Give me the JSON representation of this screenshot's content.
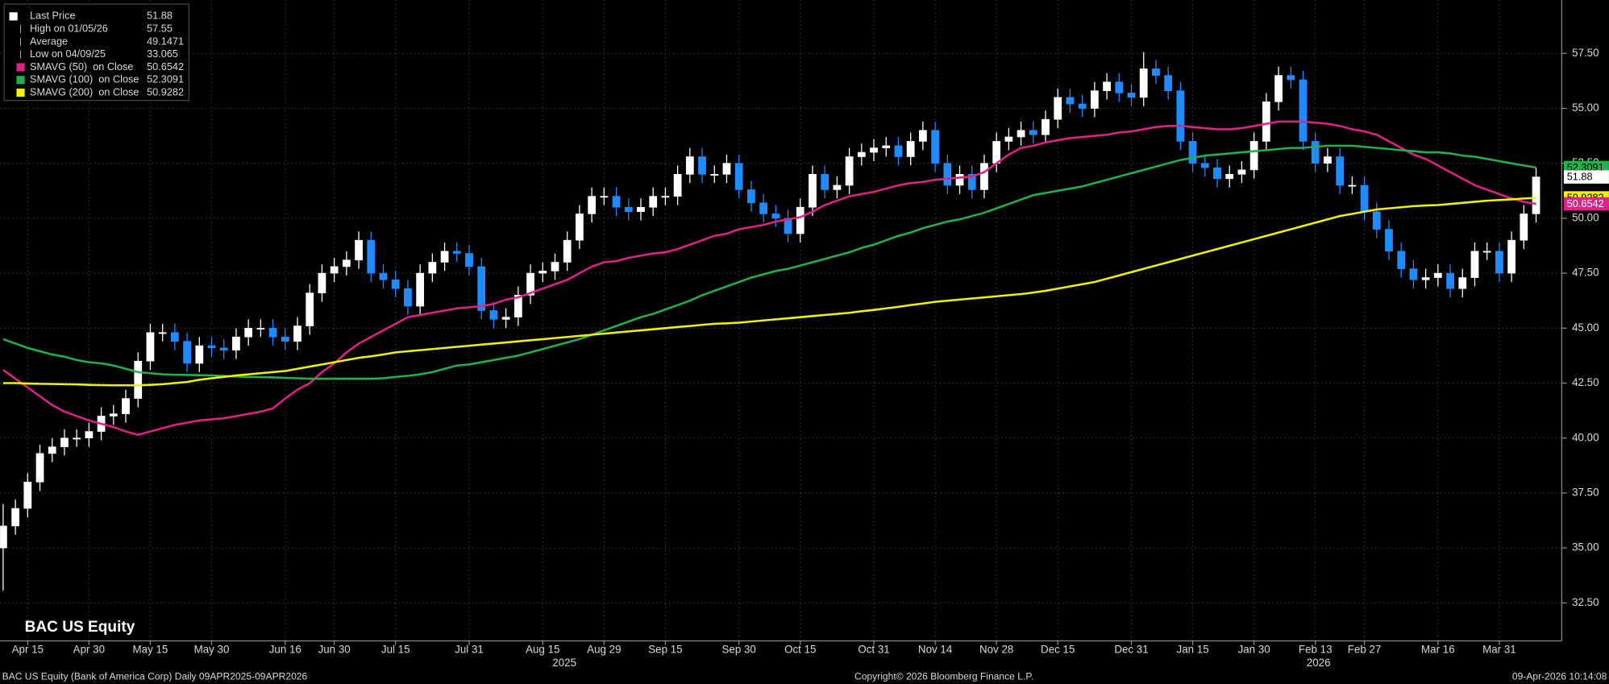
{
  "chart_data": {
    "type": "candlestick",
    "title": "BAC US Equity",
    "footer_left": "BAC US Equity (Bank of America Corp) Daily 09APR2025-09APR2026",
    "footer_center": "Copyright© 2026 Bloomberg Finance L.P.",
    "footer_right": "09-Apr-2026 10:14:08",
    "x_groups": [
      "2025",
      "2026"
    ],
    "categories": [
      null,
      null,
      "Apr 15",
      null,
      null,
      null,
      null,
      "Apr 30",
      null,
      null,
      null,
      null,
      "May 15",
      null,
      null,
      null,
      null,
      "May 30",
      null,
      null,
      null,
      null,
      null,
      "Jun 16",
      null,
      null,
      null,
      "Jun 30",
      null,
      null,
      null,
      null,
      "Jul 15",
      null,
      null,
      null,
      null,
      null,
      "Jul 31",
      null,
      null,
      null,
      null,
      null,
      "Aug 15",
      null,
      null,
      null,
      null,
      "Aug 29",
      null,
      null,
      null,
      null,
      "Sep 15",
      null,
      null,
      null,
      null,
      null,
      "Sep 30",
      null,
      null,
      null,
      null,
      "Oct 15",
      null,
      null,
      null,
      null,
      null,
      "Oct 31",
      null,
      null,
      null,
      null,
      "Nov 14",
      null,
      null,
      null,
      null,
      "Nov 28",
      null,
      null,
      null,
      null,
      "Dec 15",
      null,
      null,
      null,
      null,
      null,
      "Dec 31",
      null,
      null,
      null,
      null,
      "Jan 15",
      null,
      null,
      null,
      null,
      "Jan 30",
      null,
      null,
      null,
      null,
      "Feb 13",
      null,
      null,
      null,
      "Feb 27",
      null,
      null,
      null,
      null,
      null,
      "Mar 16",
      null,
      null,
      null,
      null,
      "Mar 31",
      null,
      null,
      null
    ],
    "price_name": "Last Price",
    "up_color": "#ffffff",
    "down_color": "#1f8bff",
    "open": [
      35.0,
      36.0,
      36.8,
      38.0,
      39.3,
      39.6,
      40.0,
      40.0,
      40.3,
      41.0,
      41.1,
      41.8,
      43.5,
      44.8,
      44.8,
      44.4,
      43.4,
      44.2,
      44.1,
      44.0,
      44.6,
      45.0,
      45.0,
      44.6,
      44.4,
      45.1,
      46.6,
      47.5,
      47.8,
      48.1,
      49.0,
      47.5,
      47.2,
      46.8,
      46.0,
      47.5,
      48.0,
      48.5,
      48.4,
      47.8,
      45.8,
      45.4,
      45.5,
      46.5,
      47.5,
      47.6,
      48.0,
      49.0,
      50.2,
      51.0,
      51.0,
      50.5,
      50.3,
      50.5,
      51.0,
      51.0,
      52.0,
      52.8,
      52.0,
      52.0,
      52.5,
      51.3,
      50.7,
      50.2,
      50.0,
      49.3,
      50.5,
      52.0,
      51.3,
      51.5,
      52.8,
      53.0,
      53.2,
      53.3,
      52.8,
      53.5,
      54.0,
      52.5,
      51.5,
      52.0,
      51.3,
      52.5,
      53.5,
      53.7,
      54.0,
      53.8,
      54.5,
      55.5,
      55.2,
      55.0,
      55.8,
      56.2,
      55.7,
      55.5,
      56.8,
      56.5,
      55.8,
      53.5,
      52.5,
      52.3,
      51.8,
      52.0,
      52.2,
      53.5,
      55.3,
      56.5,
      56.3,
      53.5,
      52.5,
      52.8,
      51.5,
      51.5,
      50.3,
      49.5,
      48.5,
      47.7,
      47.2,
      47.3,
      47.5,
      46.8,
      47.3,
      48.5,
      48.5,
      47.5,
      49.0,
      50.2
    ],
    "high": [
      37.0,
      37.2,
      38.4,
      39.7,
      40.0,
      40.4,
      40.4,
      40.7,
      41.4,
      41.5,
      42.2,
      43.9,
      45.2,
      45.2,
      45.2,
      44.8,
      44.6,
      44.6,
      44.5,
      45.0,
      45.4,
      45.4,
      45.4,
      45.0,
      45.5,
      47.0,
      47.9,
      48.2,
      48.5,
      49.4,
      49.4,
      47.9,
      47.6,
      47.2,
      47.9,
      48.4,
      48.9,
      48.9,
      48.8,
      48.2,
      46.2,
      45.9,
      46.9,
      47.9,
      48.0,
      48.4,
      49.4,
      50.6,
      51.4,
      51.4,
      51.4,
      50.9,
      50.9,
      51.4,
      51.4,
      52.4,
      53.2,
      53.2,
      52.4,
      52.9,
      52.9,
      51.7,
      51.1,
      50.6,
      50.4,
      50.9,
      52.4,
      52.4,
      51.9,
      53.2,
      53.4,
      53.6,
      53.7,
      53.7,
      53.9,
      54.4,
      54.4,
      52.9,
      52.4,
      52.4,
      52.9,
      53.9,
      54.1,
      54.4,
      54.4,
      54.9,
      55.9,
      55.9,
      55.6,
      56.2,
      56.6,
      56.6,
      56.1,
      57.55,
      57.2,
      56.9,
      56.2,
      53.9,
      52.9,
      52.7,
      52.4,
      52.6,
      53.9,
      55.7,
      56.9,
      56.9,
      56.7,
      53.9,
      53.2,
      53.2,
      51.9,
      51.9,
      50.7,
      49.9,
      48.9,
      48.1,
      47.7,
      47.9,
      47.9,
      47.7,
      48.9,
      48.9,
      48.9,
      49.4,
      50.6,
      52.3
    ],
    "low": [
      33.065,
      35.6,
      36.4,
      37.6,
      38.9,
      39.2,
      39.6,
      39.6,
      39.9,
      40.6,
      40.7,
      41.4,
      43.1,
      44.4,
      44.0,
      43.0,
      43.0,
      43.7,
      43.6,
      43.6,
      44.2,
      44.6,
      44.2,
      44.0,
      44.0,
      44.7,
      46.2,
      47.1,
      47.4,
      47.7,
      47.1,
      46.8,
      46.4,
      45.6,
      45.6,
      47.1,
      47.6,
      48.0,
      47.4,
      45.4,
      45.0,
      45.0,
      45.1,
      46.1,
      47.1,
      47.2,
      47.6,
      48.6,
      49.8,
      50.6,
      50.1,
      49.9,
      49.9,
      50.1,
      50.6,
      50.6,
      51.6,
      51.6,
      51.6,
      51.6,
      50.9,
      50.3,
      49.8,
      49.6,
      48.9,
      48.9,
      50.1,
      50.9,
      50.9,
      51.1,
      52.4,
      52.6,
      52.8,
      52.4,
      52.4,
      53.1,
      52.1,
      51.1,
      51.1,
      50.9,
      50.9,
      52.1,
      53.1,
      53.3,
      53.4,
      53.4,
      54.1,
      54.8,
      54.6,
      54.6,
      55.4,
      55.3,
      55.1,
      55.1,
      56.1,
      55.4,
      53.1,
      52.1,
      51.9,
      51.4,
      51.4,
      51.6,
      51.8,
      53.1,
      54.9,
      55.9,
      53.1,
      52.1,
      52.1,
      51.1,
      51.1,
      49.9,
      49.1,
      48.1,
      47.3,
      46.8,
      46.8,
      46.9,
      46.4,
      46.4,
      46.9,
      48.1,
      47.1,
      47.1,
      48.6,
      49.8
    ],
    "close": [
      36.0,
      36.8,
      38.0,
      39.3,
      39.6,
      40.0,
      40.0,
      40.3,
      41.0,
      41.1,
      41.8,
      43.5,
      44.8,
      44.8,
      44.4,
      43.4,
      44.2,
      44.1,
      44.0,
      44.6,
      45.0,
      45.0,
      44.6,
      44.4,
      45.1,
      46.6,
      47.5,
      47.8,
      48.1,
      49.0,
      47.5,
      47.2,
      46.8,
      46.0,
      47.5,
      48.0,
      48.5,
      48.4,
      47.8,
      45.8,
      45.4,
      45.5,
      46.5,
      47.5,
      47.6,
      48.0,
      49.0,
      50.2,
      51.0,
      51.0,
      50.5,
      50.3,
      50.5,
      51.0,
      51.0,
      52.0,
      52.8,
      52.0,
      52.0,
      52.5,
      51.3,
      50.7,
      50.2,
      50.0,
      49.3,
      50.5,
      52.0,
      51.3,
      51.5,
      52.8,
      53.0,
      53.2,
      53.3,
      52.8,
      53.5,
      54.0,
      52.5,
      51.5,
      52.0,
      51.3,
      52.5,
      53.5,
      53.7,
      54.0,
      53.8,
      54.5,
      55.5,
      55.2,
      55.0,
      55.8,
      56.2,
      55.7,
      55.5,
      56.8,
      56.5,
      55.8,
      53.5,
      52.5,
      52.3,
      51.8,
      52.0,
      52.2,
      53.5,
      55.3,
      56.5,
      56.3,
      53.5,
      52.5,
      52.8,
      51.5,
      51.5,
      50.3,
      49.5,
      48.5,
      47.7,
      47.2,
      47.3,
      47.5,
      46.8,
      47.3,
      48.5,
      48.5,
      47.5,
      49.0,
      50.2,
      51.88
    ],
    "stats": [
      {
        "name": "High on 01/05/26",
        "value": 57.55
      },
      {
        "name": "Average",
        "value": 49.1471
      },
      {
        "name": "Low on 04/09/25",
        "value": 33.065
      }
    ],
    "series": [
      {
        "name": "SMAVG (50)  on Close",
        "color": "#e0218a",
        "values": [
          43.1,
          42.7,
          42.3,
          41.9,
          41.5,
          41.2,
          41.0,
          40.8,
          40.65,
          40.5,
          40.3,
          40.15,
          40.3,
          40.45,
          40.6,
          40.7,
          40.8,
          40.85,
          40.9,
          41.0,
          41.1,
          41.2,
          41.35,
          41.8,
          42.2,
          42.5,
          43.0,
          43.4,
          43.9,
          44.3,
          44.6,
          44.9,
          45.2,
          45.5,
          45.6,
          45.7,
          45.8,
          45.9,
          45.95,
          46.0,
          46.1,
          46.3,
          46.4,
          46.6,
          46.8,
          47.0,
          47.2,
          47.5,
          47.8,
          48.0,
          48.05,
          48.2,
          48.3,
          48.4,
          48.45,
          48.6,
          48.8,
          49.0,
          49.2,
          49.3,
          49.5,
          49.6,
          49.7,
          49.85,
          49.95,
          50.05,
          50.3,
          50.6,
          50.8,
          51.0,
          51.1,
          51.2,
          51.35,
          51.5,
          51.6,
          51.65,
          51.75,
          51.8,
          51.85,
          51.9,
          52.1,
          52.5,
          52.9,
          53.2,
          53.3,
          53.45,
          53.55,
          53.65,
          53.7,
          53.75,
          53.8,
          53.9,
          53.95,
          54.05,
          54.15,
          54.2,
          54.2,
          54.15,
          54.1,
          54.05,
          54.05,
          54.1,
          54.2,
          54.3,
          54.4,
          54.4,
          54.4,
          54.35,
          54.3,
          54.2,
          54.05,
          53.95,
          53.8,
          53.5,
          53.2,
          52.9,
          52.7,
          52.4,
          52.1,
          51.8,
          51.5,
          51.3,
          51.1,
          50.9,
          50.75,
          50.6542
        ]
      },
      {
        "name": "SMAVG (100)  on Close",
        "color": "#22b14c",
        "values": [
          44.5,
          44.3,
          44.1,
          43.95,
          43.8,
          43.7,
          43.55,
          43.45,
          43.4,
          43.3,
          43.15,
          43.0,
          42.95,
          42.9,
          42.88,
          42.87,
          42.86,
          42.85,
          42.83,
          42.8,
          42.78,
          42.77,
          42.76,
          42.74,
          42.72,
          42.7,
          42.7,
          42.7,
          42.7,
          42.7,
          42.7,
          42.72,
          42.78,
          42.83,
          42.9,
          43.0,
          43.15,
          43.3,
          43.35,
          43.45,
          43.55,
          43.65,
          43.75,
          43.9,
          44.05,
          44.2,
          44.35,
          44.5,
          44.7,
          44.9,
          45.1,
          45.3,
          45.5,
          45.65,
          45.85,
          46.05,
          46.25,
          46.5,
          46.7,
          46.9,
          47.1,
          47.3,
          47.45,
          47.6,
          47.7,
          47.85,
          48.0,
          48.15,
          48.3,
          48.45,
          48.65,
          48.8,
          49.0,
          49.2,
          49.35,
          49.55,
          49.7,
          49.85,
          49.95,
          50.1,
          50.25,
          50.45,
          50.65,
          50.85,
          51.05,
          51.15,
          51.25,
          51.35,
          51.45,
          51.6,
          51.75,
          51.9,
          52.05,
          52.2,
          52.35,
          52.5,
          52.65,
          52.75,
          52.85,
          52.9,
          52.95,
          53.0,
          53.05,
          53.1,
          53.15,
          53.2,
          53.2,
          53.25,
          53.3,
          53.3,
          53.3,
          53.25,
          53.2,
          53.15,
          53.1,
          53.05,
          53.0,
          53.0,
          52.95,
          52.85,
          52.8,
          52.7,
          52.6,
          52.5,
          52.4,
          52.3091
        ]
      },
      {
        "name": "SMAVG (200)  on Close",
        "color": "#f2f200",
        "values": [
          42.5,
          42.5,
          42.48,
          42.47,
          42.46,
          42.45,
          42.44,
          42.42,
          42.41,
          42.4,
          42.4,
          42.4,
          42.42,
          42.45,
          42.5,
          42.55,
          42.65,
          42.72,
          42.78,
          42.85,
          42.9,
          42.95,
          43.0,
          43.05,
          43.15,
          43.25,
          43.35,
          43.45,
          43.55,
          43.65,
          43.72,
          43.8,
          43.9,
          43.95,
          44.0,
          44.05,
          44.1,
          44.15,
          44.2,
          44.25,
          44.3,
          44.35,
          44.4,
          44.45,
          44.5,
          44.55,
          44.6,
          44.65,
          44.7,
          44.75,
          44.8,
          44.85,
          44.9,
          44.95,
          45.0,
          45.05,
          45.1,
          45.15,
          45.2,
          45.22,
          45.25,
          45.3,
          45.35,
          45.4,
          45.45,
          45.5,
          45.55,
          45.6,
          45.65,
          45.7,
          45.77,
          45.83,
          45.9,
          45.97,
          46.05,
          46.12,
          46.2,
          46.25,
          46.3,
          46.35,
          46.4,
          46.45,
          46.5,
          46.55,
          46.62,
          46.7,
          46.8,
          46.9,
          47.0,
          47.1,
          47.25,
          47.4,
          47.55,
          47.7,
          47.85,
          48.0,
          48.15,
          48.3,
          48.45,
          48.6,
          48.75,
          48.9,
          49.05,
          49.2,
          49.35,
          49.5,
          49.65,
          49.8,
          49.95,
          50.1,
          50.2,
          50.3,
          50.4,
          50.45,
          50.5,
          50.55,
          50.58,
          50.6,
          50.65,
          50.7,
          50.75,
          50.8,
          50.83,
          50.86,
          50.9,
          50.9282
        ]
      }
    ],
    "ylim": [
      30.77,
      59.93
    ],
    "yticks": [
      {
        "value": 32.5,
        "label": "32.50"
      },
      {
        "value": 35,
        "label": "35.00"
      },
      {
        "value": 37.5,
        "label": "37.50"
      },
      {
        "value": 40,
        "label": "40.00"
      },
      {
        "value": 42.5,
        "label": "42.50"
      },
      {
        "value": 45,
        "label": "45.00"
      },
      {
        "value": 47.5,
        "label": "47.50"
      },
      {
        "value": 50,
        "label": "50.00"
      },
      {
        "value": 52.5,
        "label": "52.50"
      },
      {
        "value": 55,
        "label": "55.00"
      },
      {
        "value": 57.5,
        "label": "57.50"
      }
    ],
    "grid": true
  }
}
